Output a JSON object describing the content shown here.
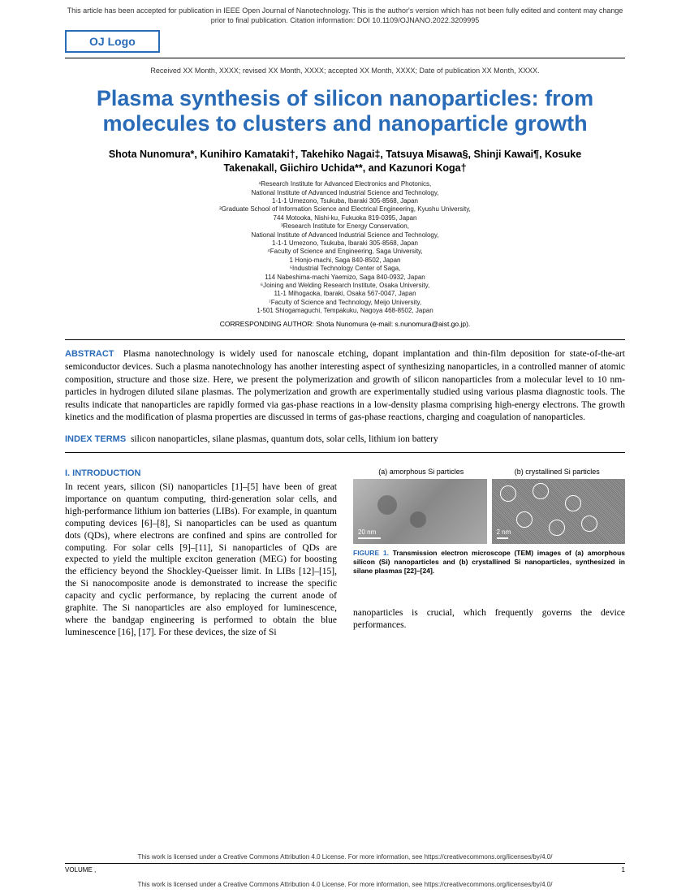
{
  "colors": {
    "accent": "#2a6bb8",
    "text": "#000000",
    "muted": "#333333",
    "background": "#ffffff"
  },
  "header": {
    "notice": "This article has been accepted for publication in IEEE Open Journal of Nanotechnology. This is the author's version which has not been fully edited and content may change prior to final publication. Citation information: DOI 10.1109/OJNANO.2022.3209995",
    "logo": "OJ Logo",
    "received": "Received XX Month, XXXX; revised XX Month, XXXX; accepted XX Month, XXXX; Date of publication XX Month, XXXX."
  },
  "title": "Plasma synthesis of silicon nanoparticles: from molecules to clusters and nanoparticle growth",
  "authors_html": "Shota Nunomura*, Kunihiro Kamataki†, Takehiko Nagai‡, Tatsuya Misawa§, Shinji Kawai¶, Kosuke Takenaka‖, Giichiro Uchida**, and Kazunori Koga†",
  "affiliations": [
    "¹Research Institute for Advanced Electronics and Photonics,",
    "National Institute of Advanced Industrial Science and Technology,",
    "1-1-1 Umezono, Tsukuba, Ibaraki 305-8568, Japan",
    "²Graduate School of Information Science and Electrical Engineering, Kyushu University,",
    "744 Motooka, Nishi-ku, Fukuoka 819-0395, Japan",
    "³Research Institute for Energy Conservation,",
    "National Institute of Advanced Industrial Science and Technology,",
    "1-1-1 Umezono, Tsukuba, Ibaraki 305-8568, Japan",
    "⁴Faculty of Science and Engineering, Saga University,",
    "1 Honjo-machi, Saga 840-8502, Japan",
    "⁵Industrial Technology Center of Saga,",
    "114 Nabeshima-machi Yaemizo, Saga 840-0932, Japan",
    "⁶Joining and Welding Research Institute, Osaka University,",
    "11-1 Mihogaoka, Ibaraki, Osaka 567-0047, Japan",
    "⁷Faculty of Science and Technology, Meijo University,",
    "1-501 Shiogamaguchi, Tempakuku, Nagoya 468-8502, Japan"
  ],
  "corresponding": "CORRESPONDING AUTHOR: Shota Nunomura (e-mail: s.nunomura@aist.go.jp).",
  "abstract": {
    "label": "ABSTRACT",
    "text": "Plasma nanotechnology is widely used for nanoscale etching, dopant implantation and thin-film deposition for state-of-the-art semiconductor devices. Such a plasma nanotechnology has another interesting aspect of synthesizing nanoparticles, in a controlled manner of atomic composition, structure and those size. Here, we present the polymerization and growth of silicon nanoparticles from a molecular level to 10 nm-particles in hydrogen diluted silane plasmas. The polymerization and growth are experimentally studied using various plasma diagnostic tools. The results indicate that nanoparticles are rapidly formed via gas-phase reactions in a low-density plasma comprising high-energy electrons. The growth kinetics and the modification of plasma properties are discussed in terms of gas-phase reactions, charging and coagulation of nanoparticles."
  },
  "index_terms": {
    "label": "INDEX TERMS",
    "text": "silicon nanoparticles, silane plasmas, quantum dots, solar cells, lithium ion battery"
  },
  "section1": {
    "heading": "I. INTRODUCTION",
    "body": "In recent years, silicon (Si) nanoparticles [1]–[5] have been of great importance on quantum computing, third-generation solar cells, and high-performance lithium ion batteries (LIBs). For example, in quantum computing devices [6]–[8], Si nanoparticles can be used as quantum dots (QDs), where electrons are confined and spins are controlled for computing. For solar cells [9]–[11], Si nanoparticles of QDs are expected to yield the multiple exciton generation (MEG) for boosting the efficiency beyond the Shockley-Queisser limit. In LIBs [12]–[15], the Si nanocomposite anode is demonstrated to increase the specific capacity and cyclic performance, by replacing the current anode of graphite. The Si nanoparticles are also employed for luminescence, where the bandgap engineering is performed to obtain the blue luminescence [16], [17]. For these devices, the size of Si"
  },
  "figure1": {
    "label_a": "(a) amorphous Si particles",
    "label_b": "(b) crystallined Si particles",
    "scalebar_a": "20 nm",
    "scalebar_b": "2 nm",
    "caption_label": "FIGURE 1.",
    "caption": "Transmission electron microscope (TEM) images of (a) amorphous silicon (Si) nanoparticles and (b) crystallined Si nanoparticles, synthesized in silane plasmas [22]–[24]."
  },
  "col2_tail": "nanoparticles is crucial, which frequently governs the device performances.",
  "license": "This work is licensed under a Creative Commons Attribution 4.0 License. For more information, see https://creativecommons.org/licenses/by/4.0/",
  "footer": {
    "volume": "VOLUME ,",
    "page": "1"
  }
}
